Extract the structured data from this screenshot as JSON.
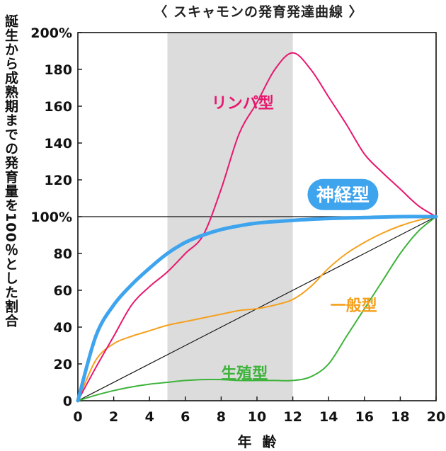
{
  "chart_data": {
    "type": "line",
    "title": "〈 スキャモンの発育発達曲線 〉",
    "ylabel": "誕生から成熟期までの発育量を100％とした割合",
    "xlabel": "年 齢",
    "xlim": [
      0,
      20
    ],
    "ylim": [
      0,
      200
    ],
    "x_ticks": [
      "0",
      "2",
      "4",
      "6",
      "8",
      "10",
      "12",
      "14",
      "16",
      "18",
      "20"
    ],
    "y_ticks": [
      "0",
      "20",
      "40",
      "60",
      "80",
      "100%",
      "120",
      "140",
      "160",
      "180",
      "200%"
    ],
    "shaded_band": {
      "x_from": 5,
      "x_to": 12,
      "color": "#dcdcdc"
    },
    "reference_line_y": 100,
    "diagonal_reference": {
      "from": [
        0,
        0
      ],
      "to": [
        20,
        100
      ]
    },
    "series": [
      {
        "name": "リンパ型",
        "color": "#e8176e",
        "label_pos": [
          9.2,
          162
        ],
        "points": [
          [
            0,
            0
          ],
          [
            1,
            18
          ],
          [
            2,
            35
          ],
          [
            3,
            52
          ],
          [
            4,
            62
          ],
          [
            5,
            70
          ],
          [
            6,
            80
          ],
          [
            7,
            90
          ],
          [
            8,
            115
          ],
          [
            9,
            145
          ],
          [
            10,
            162
          ],
          [
            11,
            180
          ],
          [
            12,
            189
          ],
          [
            13,
            180
          ],
          [
            14,
            165
          ],
          [
            15,
            150
          ],
          [
            16,
            134
          ],
          [
            17,
            124
          ],
          [
            18,
            115
          ],
          [
            19,
            106
          ],
          [
            20,
            100
          ]
        ]
      },
      {
        "name": "神経型",
        "color": "#3ea4ee",
        "label_pos": [
          14.8,
          112
        ],
        "points": [
          [
            0,
            0
          ],
          [
            1,
            35
          ],
          [
            2,
            52
          ],
          [
            3,
            63
          ],
          [
            4,
            72
          ],
          [
            5,
            80
          ],
          [
            6,
            86
          ],
          [
            7,
            90
          ],
          [
            8,
            93
          ],
          [
            9,
            95
          ],
          [
            10,
            96.5
          ],
          [
            12,
            98
          ],
          [
            14,
            99
          ],
          [
            16,
            99.5
          ],
          [
            18,
            100
          ],
          [
            20,
            100
          ]
        ]
      },
      {
        "name": "一般型",
        "color": "#f5a01d",
        "label_pos": [
          15.4,
          52
        ],
        "points": [
          [
            0,
            0
          ],
          [
            1,
            22
          ],
          [
            2,
            31
          ],
          [
            3,
            35
          ],
          [
            4,
            38
          ],
          [
            5,
            41
          ],
          [
            6,
            43
          ],
          [
            7,
            45
          ],
          [
            8,
            47
          ],
          [
            9,
            49
          ],
          [
            10,
            50
          ],
          [
            11,
            52
          ],
          [
            12,
            55
          ],
          [
            13,
            62
          ],
          [
            14,
            72
          ],
          [
            15,
            80
          ],
          [
            16,
            86
          ],
          [
            17,
            91
          ],
          [
            18,
            95
          ],
          [
            19,
            98
          ],
          [
            20,
            100
          ]
        ]
      },
      {
        "name": "生殖型",
        "color": "#3db33a",
        "label_pos": [
          9.3,
          15
        ],
        "points": [
          [
            0,
            0
          ],
          [
            1,
            3
          ],
          [
            2,
            5.5
          ],
          [
            3,
            7.5
          ],
          [
            4,
            9
          ],
          [
            5,
            10
          ],
          [
            6,
            11
          ],
          [
            7,
            11.5
          ],
          [
            8,
            11.5
          ],
          [
            9,
            11
          ],
          [
            10,
            11
          ],
          [
            11,
            11
          ],
          [
            12,
            11
          ],
          [
            13,
            13
          ],
          [
            14,
            20
          ],
          [
            15,
            35
          ],
          [
            16,
            50
          ],
          [
            17,
            65
          ],
          [
            18,
            80
          ],
          [
            19,
            92
          ],
          [
            20,
            100
          ]
        ]
      }
    ]
  }
}
